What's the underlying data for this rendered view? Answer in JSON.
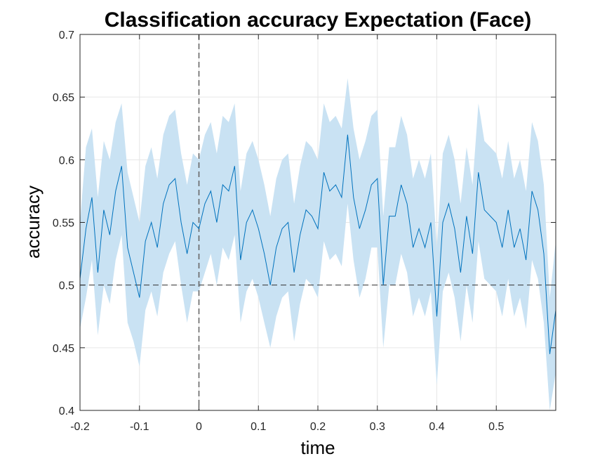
{
  "chart_data": {
    "type": "line",
    "title": "Classification accuracy Expectation (Face)",
    "xlabel": "time",
    "ylabel": "accuracy",
    "xlim": [
      -0.2,
      0.6
    ],
    "ylim": [
      0.4,
      0.7
    ],
    "x_ticks": [
      -0.2,
      -0.1,
      0,
      0.1,
      0.2,
      0.3,
      0.4,
      0.5
    ],
    "x_tick_labels": [
      "-0.2",
      "-0.1",
      "0",
      "0.1",
      "0.2",
      "0.3",
      "0.4",
      "0.5"
    ],
    "y_ticks": [
      0.4,
      0.45,
      0.5,
      0.55,
      0.6,
      0.65,
      0.7
    ],
    "y_tick_labels": [
      "0.4",
      "0.45",
      "0.5",
      "0.55",
      "0.6",
      "0.65",
      "0.7"
    ],
    "grid": true,
    "chance_level": 0.5,
    "onset_time": 0,
    "colors": {
      "line": "#0072BD",
      "band": "#c9e2f3",
      "grid": "#e6e6e6",
      "reference": "#333333",
      "onset": "#666666"
    },
    "series": [
      {
        "x": [
          -0.2,
          -0.19,
          -0.18,
          -0.17,
          -0.16,
          -0.15,
          -0.14,
          -0.13,
          -0.12,
          -0.11,
          -0.1,
          -0.09,
          -0.08,
          -0.07,
          -0.06,
          -0.05,
          -0.04,
          -0.03,
          -0.02,
          -0.01,
          0,
          0.01,
          0.02,
          0.03,
          0.04,
          0.05,
          0.06,
          0.07,
          0.08,
          0.09,
          0.1,
          0.11,
          0.12,
          0.13,
          0.14,
          0.15,
          0.16,
          0.17,
          0.18,
          0.19,
          0.2,
          0.21,
          0.22,
          0.23,
          0.24,
          0.25,
          0.26,
          0.27,
          0.28,
          0.29,
          0.3,
          0.31,
          0.32,
          0.33,
          0.34,
          0.35,
          0.36,
          0.37,
          0.38,
          0.39,
          0.4,
          0.41,
          0.42,
          0.43,
          0.44,
          0.45,
          0.46,
          0.47,
          0.48,
          0.49,
          0.5,
          0.51,
          0.52,
          0.53,
          0.54,
          0.55,
          0.56,
          0.57,
          0.58,
          0.59,
          0.6
        ],
        "y": [
          0.505,
          0.545,
          0.57,
          0.51,
          0.56,
          0.54,
          0.575,
          0.595,
          0.53,
          0.51,
          0.49,
          0.535,
          0.55,
          0.53,
          0.565,
          0.58,
          0.585,
          0.55,
          0.525,
          0.55,
          0.545,
          0.565,
          0.575,
          0.55,
          0.58,
          0.575,
          0.595,
          0.52,
          0.55,
          0.56,
          0.545,
          0.525,
          0.5,
          0.53,
          0.545,
          0.55,
          0.51,
          0.54,
          0.56,
          0.555,
          0.545,
          0.59,
          0.575,
          0.58,
          0.57,
          0.62,
          0.57,
          0.545,
          0.56,
          0.58,
          0.585,
          0.5,
          0.555,
          0.555,
          0.58,
          0.565,
          0.53,
          0.545,
          0.53,
          0.55,
          0.475,
          0.55,
          0.565,
          0.545,
          0.51,
          0.555,
          0.525,
          0.59,
          0.56,
          0.555,
          0.55,
          0.53,
          0.56,
          0.53,
          0.545,
          0.52,
          0.575,
          0.56,
          0.525,
          0.445,
          0.48
        ],
        "lower": [
          0.465,
          0.49,
          0.52,
          0.46,
          0.5,
          0.485,
          0.52,
          0.54,
          0.47,
          0.455,
          0.435,
          0.48,
          0.495,
          0.475,
          0.51,
          0.525,
          0.535,
          0.5,
          0.47,
          0.495,
          0.495,
          0.51,
          0.525,
          0.5,
          0.53,
          0.52,
          0.54,
          0.47,
          0.495,
          0.505,
          0.49,
          0.47,
          0.45,
          0.475,
          0.49,
          0.495,
          0.455,
          0.485,
          0.505,
          0.5,
          0.49,
          0.535,
          0.52,
          0.525,
          0.515,
          0.565,
          0.52,
          0.49,
          0.505,
          0.53,
          0.53,
          0.45,
          0.5,
          0.5,
          0.525,
          0.51,
          0.475,
          0.49,
          0.475,
          0.495,
          0.42,
          0.495,
          0.51,
          0.49,
          0.455,
          0.5,
          0.47,
          0.535,
          0.505,
          0.5,
          0.495,
          0.475,
          0.505,
          0.475,
          0.49,
          0.465,
          0.52,
          0.505,
          0.47,
          0.4,
          0.43
        ],
        "upper": [
          0.55,
          0.61,
          0.625,
          0.57,
          0.615,
          0.6,
          0.63,
          0.645,
          0.59,
          0.57,
          0.55,
          0.595,
          0.61,
          0.585,
          0.62,
          0.635,
          0.64,
          0.605,
          0.58,
          0.605,
          0.6,
          0.62,
          0.63,
          0.605,
          0.635,
          0.63,
          0.645,
          0.575,
          0.605,
          0.615,
          0.6,
          0.58,
          0.555,
          0.585,
          0.6,
          0.605,
          0.565,
          0.595,
          0.615,
          0.61,
          0.6,
          0.645,
          0.63,
          0.635,
          0.625,
          0.665,
          0.625,
          0.6,
          0.615,
          0.635,
          0.64,
          0.555,
          0.61,
          0.61,
          0.635,
          0.62,
          0.585,
          0.6,
          0.585,
          0.605,
          0.53,
          0.605,
          0.62,
          0.6,
          0.565,
          0.61,
          0.58,
          0.645,
          0.615,
          0.61,
          0.605,
          0.585,
          0.615,
          0.585,
          0.6,
          0.575,
          0.63,
          0.615,
          0.58,
          0.49,
          0.535
        ]
      }
    ]
  }
}
